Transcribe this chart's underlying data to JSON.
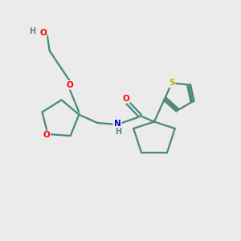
{
  "bg_color": "#ebebeb",
  "bond_color": "#4a8878",
  "atom_colors": {
    "O": "#ff0000",
    "N": "#0000cc",
    "S": "#bbbb00",
    "H": "#5a8888",
    "C": "#4a8878"
  },
  "bond_width": 1.6,
  "figsize": [
    3.0,
    3.0
  ],
  "dpi": 100
}
